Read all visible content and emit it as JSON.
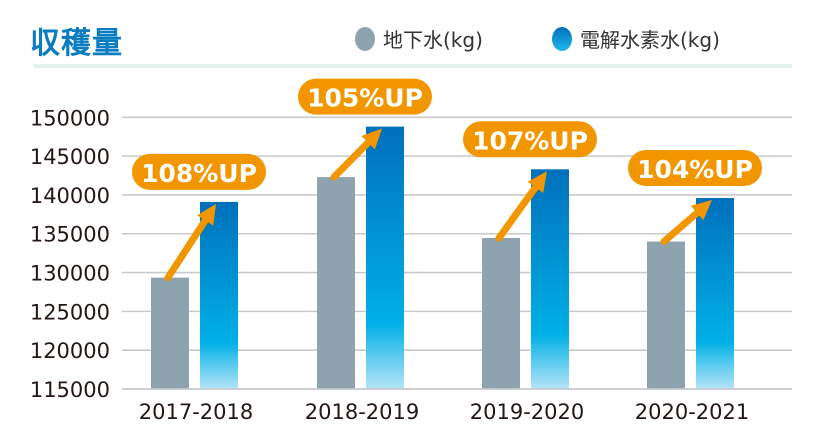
{
  "title": "収穫量",
  "legend": [
    {
      "label": "地下水(kg)",
      "color": "#8fa3af"
    },
    {
      "label": "電解水素水(kg)",
      "color": "#0a7cc1"
    }
  ],
  "chart_data": {
    "type": "bar",
    "title": "収穫量",
    "categories": [
      "2017-2018",
      "2018-2019",
      "2019-2020",
      "2020-2021"
    ],
    "series": [
      {
        "name": "地下水(kg)",
        "values": [
          129350,
          142300,
          134450,
          134000
        ]
      },
      {
        "name": "電解水素水(kg)",
        "values": [
          139100,
          148800,
          143300,
          139600
        ]
      }
    ],
    "annotations": [
      "108%UP",
      "105%UP",
      "107%UP",
      "104%UP"
    ],
    "ylim": [
      115000,
      150000
    ],
    "yticks": [
      115000,
      120000,
      125000,
      130000,
      135000,
      140000,
      145000,
      150000
    ],
    "grid": true,
    "legend_position": "top-right",
    "colors": {
      "gray": "#8fa3af",
      "blue_top": "#0070bb",
      "blue_bottom": "#a5ddf5",
      "accent": "#f29600"
    }
  }
}
